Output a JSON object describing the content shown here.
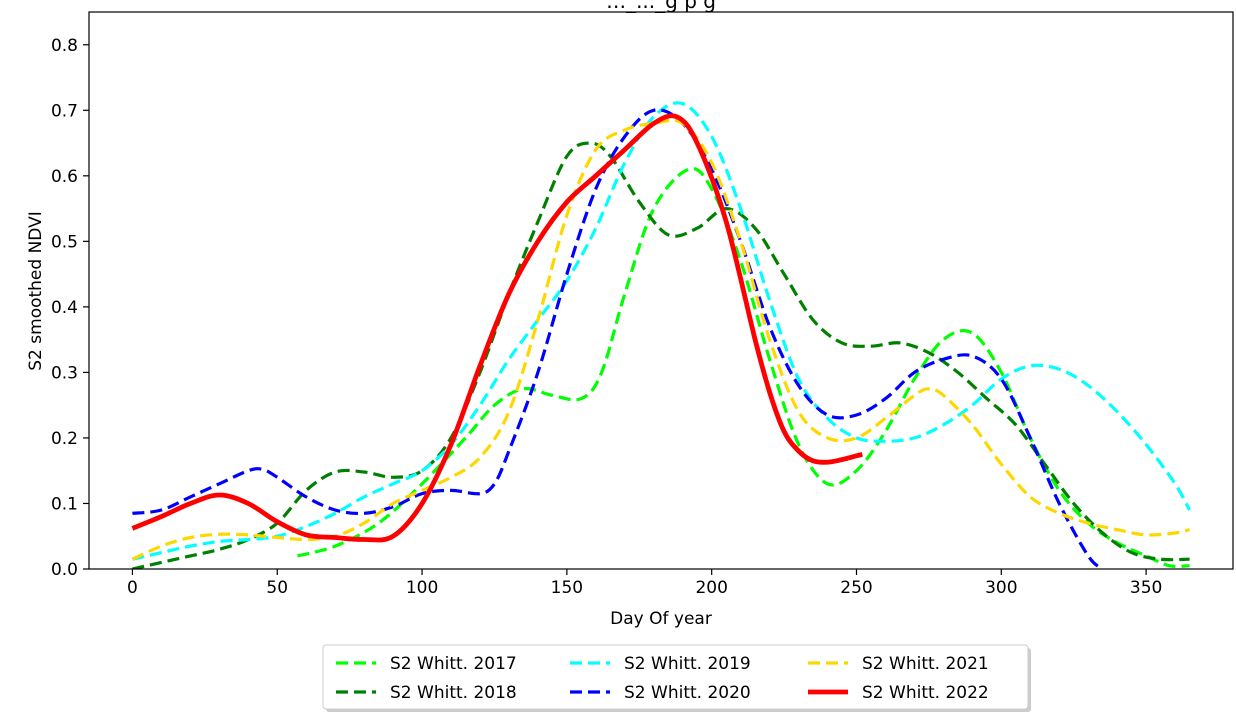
{
  "chart_data": {
    "type": "line",
    "title": "…_..._g p g",
    "xlabel": "Day Of year",
    "ylabel": "S2 smoothed NDVI",
    "xlim": [
      -15,
      380
    ],
    "ylim": [
      0,
      0.85
    ],
    "xticks": [
      0,
      50,
      100,
      150,
      200,
      250,
      300,
      350
    ],
    "yticks": [
      0.0,
      0.1,
      0.2,
      0.3,
      0.4,
      0.5,
      0.6,
      0.7,
      0.8
    ],
    "grid": false,
    "legend_position": "bottom-center",
    "series": [
      {
        "name": "S2 Whitt. 2017",
        "color": "#00ff00",
        "style": "dashed",
        "x": [
          57,
          70,
          85,
          100,
          115,
          125,
          135,
          145,
          155,
          162,
          170,
          180,
          192,
          200,
          210,
          220,
          230,
          240,
          250,
          260,
          270,
          280,
          290,
          300,
          310,
          320,
          330,
          340,
          350,
          358,
          365
        ],
        "y": [
          0.02,
          0.035,
          0.07,
          0.13,
          0.2,
          0.25,
          0.275,
          0.265,
          0.26,
          0.3,
          0.42,
          0.55,
          0.61,
          0.58,
          0.47,
          0.32,
          0.19,
          0.13,
          0.15,
          0.21,
          0.29,
          0.35,
          0.36,
          0.3,
          0.2,
          0.12,
          0.07,
          0.04,
          0.02,
          0.005,
          0.005
        ]
      },
      {
        "name": "S2 Whitt. 2018",
        "color": "#008000",
        "style": "dashed",
        "x": [
          0,
          10,
          20,
          30,
          40,
          50,
          60,
          70,
          80,
          90,
          100,
          110,
          120,
          130,
          140,
          150,
          158,
          165,
          175,
          185,
          195,
          205,
          215,
          225,
          235,
          245,
          255,
          265,
          275,
          285,
          295,
          305,
          315,
          325,
          335,
          345,
          355,
          365
        ],
        "y": [
          0.0,
          0.01,
          0.02,
          0.03,
          0.045,
          0.07,
          0.12,
          0.148,
          0.148,
          0.14,
          0.15,
          0.2,
          0.3,
          0.42,
          0.53,
          0.63,
          0.65,
          0.63,
          0.56,
          0.51,
          0.52,
          0.55,
          0.52,
          0.45,
          0.38,
          0.345,
          0.34,
          0.345,
          0.33,
          0.3,
          0.26,
          0.22,
          0.16,
          0.1,
          0.055,
          0.025,
          0.015,
          0.015
        ]
      },
      {
        "name": "S2 Whitt. 2019",
        "color": "#00ffff",
        "style": "dashed",
        "x": [
          0,
          10,
          20,
          30,
          40,
          50,
          60,
          70,
          80,
          90,
          100,
          110,
          120,
          130,
          140,
          150,
          160,
          170,
          180,
          190,
          200,
          210,
          220,
          230,
          240,
          250,
          260,
          270,
          280,
          290,
          300,
          310,
          320,
          330,
          340,
          350,
          360,
          365
        ],
        "y": [
          0.015,
          0.025,
          0.035,
          0.042,
          0.045,
          0.05,
          0.065,
          0.085,
          0.11,
          0.13,
          0.15,
          0.19,
          0.25,
          0.32,
          0.38,
          0.44,
          0.52,
          0.62,
          0.69,
          0.71,
          0.66,
          0.55,
          0.41,
          0.29,
          0.23,
          0.2,
          0.195,
          0.2,
          0.22,
          0.25,
          0.29,
          0.31,
          0.305,
          0.28,
          0.24,
          0.19,
          0.13,
          0.09
        ]
      },
      {
        "name": "S2 Whitt. 2020",
        "color": "#0000ff",
        "style": "dashed",
        "x": [
          0,
          10,
          20,
          30,
          40,
          45,
          50,
          60,
          70,
          80,
          90,
          100,
          110,
          120,
          125,
          130,
          140,
          150,
          160,
          170,
          180,
          190,
          200,
          210,
          220,
          230,
          240,
          250,
          260,
          270,
          280,
          290,
          300,
          310,
          320,
          330,
          335
        ],
        "y": [
          0.085,
          0.09,
          0.11,
          0.13,
          0.15,
          0.152,
          0.14,
          0.11,
          0.09,
          0.085,
          0.095,
          0.115,
          0.12,
          0.115,
          0.13,
          0.18,
          0.3,
          0.45,
          0.58,
          0.66,
          0.7,
          0.68,
          0.61,
          0.5,
          0.37,
          0.28,
          0.235,
          0.235,
          0.26,
          0.3,
          0.32,
          0.325,
          0.29,
          0.2,
          0.1,
          0.02,
          0.0
        ]
      },
      {
        "name": "S2 Whitt. 2021",
        "color": "#ffd700",
        "style": "dashed",
        "x": [
          0,
          10,
          20,
          30,
          40,
          50,
          60,
          70,
          80,
          90,
          100,
          110,
          120,
          130,
          140,
          150,
          160,
          170,
          180,
          190,
          200,
          210,
          220,
          230,
          240,
          250,
          260,
          270,
          275,
          280,
          290,
          300,
          310,
          320,
          330,
          340,
          350,
          360,
          365
        ],
        "y": [
          0.015,
          0.035,
          0.048,
          0.053,
          0.052,
          0.048,
          0.045,
          0.05,
          0.07,
          0.1,
          0.12,
          0.14,
          0.17,
          0.24,
          0.38,
          0.54,
          0.64,
          0.67,
          0.68,
          0.68,
          0.62,
          0.5,
          0.35,
          0.24,
          0.2,
          0.2,
          0.23,
          0.265,
          0.275,
          0.265,
          0.22,
          0.16,
          0.11,
          0.085,
          0.07,
          0.06,
          0.052,
          0.055,
          0.06
        ]
      },
      {
        "name": "S2 Whitt. 2022",
        "color": "#ff0000",
        "style": "solid",
        "x": [
          0,
          10,
          20,
          30,
          40,
          50,
          60,
          70,
          80,
          90,
          100,
          110,
          120,
          130,
          140,
          150,
          160,
          170,
          180,
          188,
          195,
          205,
          215,
          220,
          225,
          230,
          235,
          240,
          245,
          252
        ],
        "y": [
          0.062,
          0.08,
          0.1,
          0.113,
          0.1,
          0.072,
          0.052,
          0.048,
          0.045,
          0.05,
          0.1,
          0.19,
          0.31,
          0.42,
          0.5,
          0.56,
          0.6,
          0.64,
          0.68,
          0.69,
          0.65,
          0.53,
          0.35,
          0.27,
          0.21,
          0.18,
          0.165,
          0.163,
          0.167,
          0.175
        ]
      }
    ]
  }
}
